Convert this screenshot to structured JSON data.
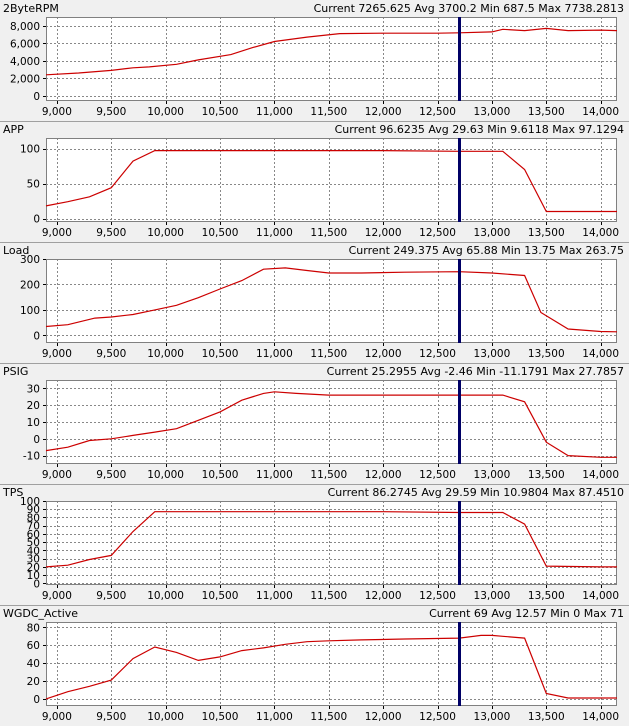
{
  "chart_data": [
    {
      "type": "line",
      "title": "2ByteRPM",
      "stats": "Current 7265.625 Avg 3700.2 Min 687.5 Max 7738.2813",
      "series_color": "#cc0000",
      "cursor_x": 12700,
      "cursor_color": "#000066",
      "xlim": [
        8900,
        14150
      ],
      "xticks": [
        9000,
        9500,
        10000,
        10500,
        11000,
        11500,
        12000,
        12500,
        13000,
        13500,
        14000
      ],
      "xtick_labels": [
        "9,000",
        "9,500",
        "10,000",
        "10,500",
        "11,000",
        "11,500",
        "12,000",
        "12,500",
        "13,000",
        "13,500",
        "14,000"
      ],
      "ylim": [
        -600,
        9000
      ],
      "yticks": [
        0,
        2000,
        4000,
        6000,
        8000
      ],
      "ytick_labels": [
        "0",
        "2,000",
        "4,000",
        "6,000",
        "8,000"
      ],
      "grid": true,
      "x": [
        8900,
        9200,
        9500,
        9700,
        9850,
        10100,
        10300,
        10600,
        10800,
        11000,
        11300,
        11600,
        12000,
        12500,
        12700,
        13000,
        13100,
        13300,
        13500,
        13700,
        14000,
        14150
      ],
      "y": [
        2400,
        2600,
        2900,
        3200,
        3300,
        3600,
        4100,
        4700,
        5500,
        6200,
        6700,
        7100,
        7150,
        7150,
        7200,
        7300,
        7600,
        7450,
        7700,
        7450,
        7500,
        7450
      ]
    },
    {
      "type": "line",
      "title": "APP",
      "stats": "Current 96.6235 Avg 29.63 Min 9.6118 Max 97.1294",
      "series_color": "#cc0000",
      "cursor_x": 12700,
      "cursor_color": "#000066",
      "xlim": [
        8900,
        14150
      ],
      "xticks": [
        9000,
        9500,
        10000,
        10500,
        11000,
        11500,
        12000,
        12500,
        13000,
        13500,
        14000
      ],
      "xtick_labels": [
        "9,000",
        "9,500",
        "10,000",
        "10,500",
        "11,000",
        "11,500",
        "12,000",
        "12,500",
        "13,000",
        "13,500",
        "14,000"
      ],
      "ylim": [
        -5,
        115
      ],
      "yticks": [
        0,
        50,
        100
      ],
      "ytick_labels": [
        "0",
        "50",
        "100"
      ],
      "grid": true,
      "x": [
        8900,
        9100,
        9300,
        9500,
        9700,
        9900,
        10000,
        11000,
        12000,
        12700,
        13100,
        13300,
        13500,
        14000,
        14150
      ],
      "y": [
        18,
        24,
        31,
        44,
        82,
        97,
        97,
        97,
        97,
        96,
        96,
        70,
        10,
        10,
        10
      ]
    },
    {
      "type": "line",
      "title": "Load",
      "stats": "Current 249.375 Avg 65.88 Min 13.75 Max 263.75",
      "series_color": "#cc0000",
      "cursor_x": 12700,
      "cursor_color": "#000066",
      "xlim": [
        8900,
        14150
      ],
      "xticks": [
        9000,
        9500,
        10000,
        10500,
        11000,
        11500,
        12000,
        12500,
        13000,
        13500,
        14000
      ],
      "xtick_labels": [
        "9,000",
        "9,500",
        "10,000",
        "10,500",
        "11,000",
        "11,500",
        "12,000",
        "12,500",
        "13,000",
        "13,500",
        "14,000"
      ],
      "ylim": [
        -30,
        300
      ],
      "yticks": [
        0,
        100,
        200,
        300
      ],
      "ytick_labels": [
        "0",
        "100",
        "200",
        "300"
      ],
      "grid": true,
      "x": [
        8900,
        9100,
        9350,
        9500,
        9700,
        9900,
        10100,
        10300,
        10500,
        10700,
        10900,
        11100,
        11300,
        11500,
        11800,
        12200,
        12700,
        13000,
        13300,
        13450,
        13700,
        14000,
        14150
      ],
      "y": [
        35,
        42,
        68,
        72,
        82,
        100,
        118,
        148,
        182,
        215,
        260,
        265,
        255,
        245,
        245,
        248,
        250,
        245,
        235,
        90,
        25,
        15,
        14
      ]
    },
    {
      "type": "line",
      "title": "PSIG",
      "stats": "Current 25.2955 Avg -2.46 Min -11.1791 Max 27.7857",
      "series_color": "#cc0000",
      "cursor_x": 12700,
      "cursor_color": "#000066",
      "xlim": [
        8900,
        14150
      ],
      "xticks": [
        9000,
        9500,
        10000,
        10500,
        11000,
        11500,
        12000,
        12500,
        13000,
        13500,
        14000
      ],
      "xtick_labels": [
        "9,000",
        "9,500",
        "10,000",
        "10,500",
        "11,000",
        "11,500",
        "12,000",
        "12,500",
        "13,000",
        "13,500",
        "14,000"
      ],
      "ylim": [
        -15,
        35
      ],
      "yticks": [
        -10,
        0,
        10,
        20,
        30
      ],
      "ytick_labels": [
        "-10",
        "0",
        "10",
        "20",
        "30"
      ],
      "grid": true,
      "x": [
        8900,
        9100,
        9300,
        9500,
        9700,
        9900,
        10100,
        10300,
        10500,
        10700,
        10900,
        11000,
        11200,
        11500,
        12000,
        12700,
        13100,
        13300,
        13500,
        13700,
        14000,
        14150
      ],
      "y": [
        -7,
        -5,
        -1,
        0,
        2,
        4,
        6,
        11,
        16,
        23,
        27,
        28,
        27,
        26,
        26,
        26,
        26,
        22,
        -2,
        -10,
        -11,
        -11
      ]
    },
    {
      "type": "line",
      "title": "TPS",
      "stats": "Current 86.2745 Avg 29.59 Min 10.9804 Max 87.4510",
      "series_color": "#cc0000",
      "cursor_x": 12700,
      "cursor_color": "#000066",
      "xlim": [
        8900,
        14150
      ],
      "xticks": [
        9000,
        9500,
        10000,
        10500,
        11000,
        11500,
        12000,
        12500,
        13000,
        13500,
        14000
      ],
      "xtick_labels": [
        "9,000",
        "9,500",
        "10,000",
        "10,500",
        "11,000",
        "11,500",
        "12,000",
        "12,500",
        "13,000",
        "13,500",
        "14,000"
      ],
      "ylim": [
        -2,
        100
      ],
      "yticks": [
        0,
        10,
        20,
        30,
        40,
        50,
        60,
        70,
        80,
        90,
        100
      ],
      "ytick_labels": [
        "0",
        "10",
        "20",
        "30",
        "40",
        "50",
        "60",
        "70",
        "80",
        "90",
        "100"
      ],
      "grid": true,
      "x": [
        8900,
        9100,
        9300,
        9500,
        9700,
        9900,
        10000,
        11000,
        12000,
        12700,
        13100,
        13300,
        13500,
        14000,
        14150
      ],
      "y": [
        20,
        22,
        29,
        34,
        63,
        87,
        87,
        87,
        87,
        86,
        86,
        72,
        21,
        20,
        20
      ]
    },
    {
      "type": "line",
      "title": "WGDC_Active",
      "stats": "Current 69 Avg 12.57 Min 0 Max 71",
      "series_color": "#cc0000",
      "cursor_x": 12700,
      "cursor_color": "#000066",
      "xlim": [
        8900,
        14150
      ],
      "xticks": [
        9000,
        9500,
        10000,
        10500,
        11000,
        11500,
        12000,
        12500,
        13000,
        13500,
        14000
      ],
      "xtick_labels": [
        "9,000",
        "9,500",
        "10,000",
        "10,500",
        "11,000",
        "11,500",
        "12,000",
        "12,500",
        "13,000",
        "13,500",
        "14,000"
      ],
      "ylim": [
        -8,
        86
      ],
      "yticks": [
        0,
        20,
        40,
        60,
        80
      ],
      "ytick_labels": [
        "0",
        "20",
        "40",
        "60",
        "80"
      ],
      "grid": true,
      "x": [
        8900,
        9100,
        9300,
        9500,
        9700,
        9900,
        10100,
        10300,
        10500,
        10700,
        10900,
        11100,
        11300,
        11500,
        11800,
        12200,
        12700,
        12900,
        13000,
        13100,
        13300,
        13500,
        13700,
        14000,
        14150
      ],
      "y": [
        0,
        8,
        14,
        21,
        45,
        58,
        52,
        43,
        47,
        54,
        57,
        61,
        64,
        65,
        66,
        67,
        68,
        71,
        71,
        70,
        68,
        6,
        1,
        1,
        1
      ]
    }
  ]
}
